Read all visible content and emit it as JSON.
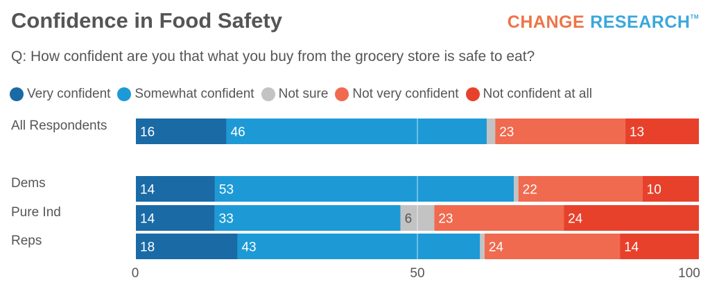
{
  "header": {
    "title": "Confidence in Food Safety",
    "logo_word1": "CHANGE",
    "logo_word2": "RESEARCH",
    "logo_tm": "TM",
    "question": "Q: How confident are you that what you buy from the grocery store is safe to eat?"
  },
  "colors": {
    "very_confident": "#1a6aa6",
    "somewhat_confident": "#1d9ad6",
    "not_sure": "#c3c3c3",
    "not_very_confident": "#f06a4f",
    "not_confident_at_all": "#e8412b",
    "text": "#555555"
  },
  "chart_data": {
    "type": "bar",
    "orientation": "horizontal",
    "stacked": true,
    "title": "Confidence in Food Safety",
    "subtitle": "Q: How confident are you that what you buy from the grocery store is safe to eat?",
    "categories": [
      "All Respondents",
      "Dems",
      "Pure Ind",
      "Reps"
    ],
    "series": [
      {
        "name": "Very confident",
        "color": "#1a6aa6",
        "values": [
          16,
          14,
          14,
          18
        ]
      },
      {
        "name": "Somewhat confident",
        "color": "#1d9ad6",
        "values": [
          46,
          53,
          33,
          43
        ]
      },
      {
        "name": "Not sure",
        "color": "#c3c3c3",
        "values": [
          1.5,
          0.8,
          6,
          0.8
        ]
      },
      {
        "name": "Not very confident",
        "color": "#f06a4f",
        "values": [
          23,
          22,
          23,
          24
        ]
      },
      {
        "name": "Not confident at all",
        "color": "#e8412b",
        "values": [
          13,
          10,
          24,
          14
        ]
      }
    ],
    "data_labels": [
      [
        "16",
        "46",
        "",
        "23",
        "13"
      ],
      [
        "14",
        "53",
        "",
        "22",
        "10"
      ],
      [
        "14",
        "33",
        "6",
        "23",
        "24"
      ],
      [
        "18",
        "43",
        "",
        "24",
        "14"
      ]
    ],
    "xlim": [
      0,
      100
    ],
    "xticks": [
      "0",
      "50",
      "100"
    ],
    "grid": "vertical at 50",
    "legend_position": "top"
  }
}
